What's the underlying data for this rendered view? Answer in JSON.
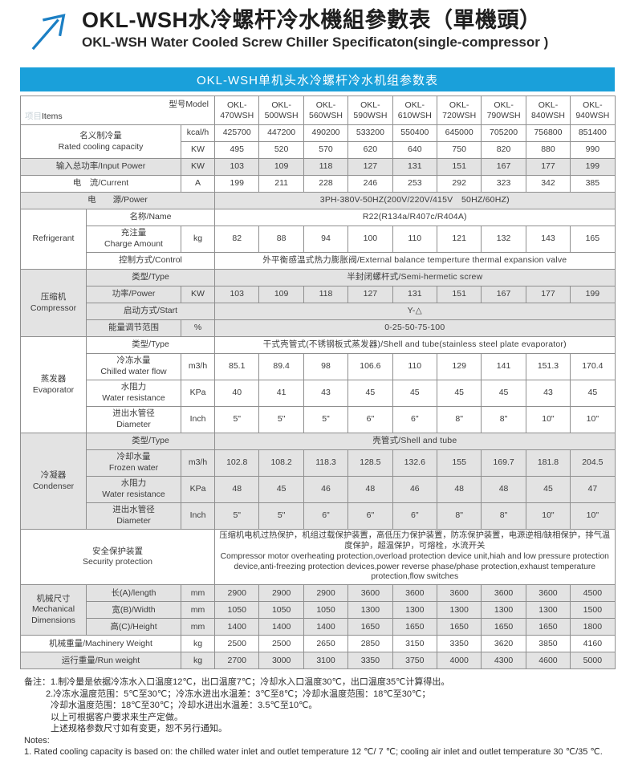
{
  "header": {
    "title_zh": "OKL-WSH水冷螺杆冷水機組參數表（單機頭）",
    "title_en": "OKL-WSH Water Cooled Screw Chiller Specificaton(single-compressor )",
    "arrow_color": "#1b7fc4"
  },
  "banner": {
    "text": "OKL-WSH单机头水冷螺杆冷水机组参数表",
    "bg_color": "#1aa0da"
  },
  "table": {
    "corner": {
      "items_zh": "项目",
      "items_en": "Items",
      "model_label": "型号Model"
    },
    "models": [
      "OKL-470WSH",
      "OKL-500WSH",
      "OKL-560WSH",
      "OKL-590WSH",
      "OKL-610WSH",
      "OKL-720WSH",
      "OKL-790WSH",
      "OKL-840WSH",
      "OKL-940WSH"
    ],
    "rated_capacity": {
      "label_zh": "名义制冷量",
      "label_en": "Rated cooling capacity",
      "unit_kcal": "kcal/h",
      "unit_kw": "KW",
      "kcal_values": [
        "425700",
        "447200",
        "490200",
        "533200",
        "550400",
        "645000",
        "705200",
        "756800",
        "851400"
      ],
      "kw_values": [
        "495",
        "520",
        "570",
        "620",
        "640",
        "750",
        "820",
        "880",
        "990"
      ]
    },
    "input_power": {
      "label": "输入总功率/Input Power",
      "unit": "KW",
      "values": [
        "103",
        "109",
        "118",
        "127",
        "131",
        "151",
        "167",
        "177",
        "199"
      ]
    },
    "current": {
      "label": "电　流/Current",
      "unit": "A",
      "values": [
        "199",
        "211",
        "228",
        "246",
        "253",
        "292",
        "323",
        "342",
        "385"
      ]
    },
    "power_source": {
      "label": "电　　源/Power",
      "value": "3PH-380V-50HZ(200V/220V/415V　50HZ/60HZ)"
    },
    "refrigerant": {
      "section": "Refrigerant",
      "name": {
        "label": "名称/Name",
        "value": "R22(R134a/R407c/R404A)"
      },
      "charge": {
        "label_zh": "充注量",
        "label_en": "Charge Amount",
        "unit": "kg",
        "values": [
          "82",
          "88",
          "94",
          "100",
          "110",
          "121",
          "132",
          "143",
          "165"
        ]
      },
      "control": {
        "label": "控制方式/Control",
        "value": "外平衡感温式热力膨胀阀/External balance temperture thermal expansion valve"
      }
    },
    "compressor": {
      "section_zh": "压缩机",
      "section_en": "Compressor",
      "type": {
        "label": "类型/Type",
        "value": "半封闭螺杆式/Semi-hermetic screw"
      },
      "power": {
        "label": "功率/Power",
        "unit": "KW",
        "values": [
          "103",
          "109",
          "118",
          "127",
          "131",
          "151",
          "167",
          "177",
          "199"
        ]
      },
      "start": {
        "label": "启动方式/Start",
        "value": "Y-△"
      },
      "energy": {
        "label": "能量调节范围",
        "unit": "%",
        "value": "0-25-50-75-100"
      }
    },
    "evaporator": {
      "section_zh": "蒸发器",
      "section_en": "Evaporator",
      "type": {
        "label": "类型/Type",
        "value": "干式壳管式(不锈钢板式蒸发器)/Shell and tube(stainless steel plate evaporator)"
      },
      "chilled_flow": {
        "label_zh": "冷冻水量",
        "label_en": "Chilled water flow",
        "unit": "m3/h",
        "values": [
          "85.1",
          "89.4",
          "98",
          "106.6",
          "110",
          "129",
          "141",
          "151.3",
          "170.4"
        ]
      },
      "water_resistance": {
        "label_zh": "水阻力",
        "label_en": "Water resistance",
        "unit": "KPa",
        "values": [
          "40",
          "41",
          "43",
          "45",
          "45",
          "45",
          "45",
          "43",
          "45"
        ]
      },
      "diameter": {
        "label_zh": "进出水管径",
        "label_en": "Diameter",
        "unit": "Inch",
        "values": [
          "5\"",
          "5\"",
          "5\"",
          "6\"",
          "6\"",
          "8\"",
          "8\"",
          "10\"",
          "10\""
        ]
      }
    },
    "condenser": {
      "section_zh": "冷凝器",
      "section_en": "Condenser",
      "type": {
        "label": "类型/Type",
        "value": "壳管式/Shell and tube"
      },
      "frozen_water": {
        "label_zh": "冷却水量",
        "label_en": "Frozen water",
        "unit": "m3/h",
        "values": [
          "102.8",
          "108.2",
          "118.3",
          "128.5",
          "132.6",
          "155",
          "169.7",
          "181.8",
          "204.5"
        ]
      },
      "water_resistance": {
        "label_zh": "水阻力",
        "label_en": "Water resistance",
        "unit": "KPa",
        "values": [
          "48",
          "45",
          "46",
          "48",
          "46",
          "48",
          "48",
          "45",
          "47"
        ]
      },
      "diameter": {
        "label_zh": "进出水管径",
        "label_en": "Diameter",
        "unit": "Inch",
        "values": [
          "5\"",
          "5\"",
          "6\"",
          "6\"",
          "6\"",
          "8\"",
          "8\"",
          "10\"",
          "10\""
        ]
      }
    },
    "security": {
      "label_zh": "安全保护装置",
      "label_en": "Security protection",
      "text_zh": "压缩机电机过热保护，机组过载保护装置，高低压力保护装置，防冻保护装置，电源逆相/缺相保护，排气温度保护，超温保护，可熔栓，水流开关",
      "text_en": "Compressor motor overheating protection,overload protection device unit,hiah and low pressure protection device,anti-freezing protection devices,power reverse phase/phase protection,exhaust temperature protection,flow switches"
    },
    "dimensions": {
      "section_zh": "机械尺寸",
      "section_en": "Mechanical Dimensions",
      "length": {
        "label": "长(A)/length",
        "unit": "mm",
        "values": [
          "2900",
          "2900",
          "2900",
          "3600",
          "3600",
          "3600",
          "3600",
          "3600",
          "4500"
        ]
      },
      "width": {
        "label": "宽(B)/Width",
        "unit": "mm",
        "values": [
          "1050",
          "1050",
          "1050",
          "1300",
          "1300",
          "1300",
          "1300",
          "1300",
          "1500"
        ]
      },
      "height": {
        "label": "高(C)/Height",
        "unit": "mm",
        "values": [
          "1400",
          "1400",
          "1400",
          "1650",
          "1650",
          "1650",
          "1650",
          "1650",
          "1800"
        ]
      }
    },
    "machinery_weight": {
      "label": "机械重量/Machinery Weight",
      "unit": "kg",
      "values": [
        "2500",
        "2500",
        "2650",
        "2850",
        "3150",
        "3350",
        "3620",
        "3850",
        "4160"
      ]
    },
    "run_weight": {
      "label": "运行重量/Run weight",
      "unit": "kg",
      "values": [
        "2700",
        "3000",
        "3100",
        "3350",
        "3750",
        "4000",
        "4300",
        "4600",
        "5000"
      ]
    }
  },
  "notes": {
    "lines": [
      {
        "text": "备注：1.制冷量是依据冷冻水入口温度12℃，出口温度7℃；冷却水入口温度30℃，出口温度35℃计算得出。",
        "indent": 0
      },
      {
        "text": "2.冷冻水温度范围：5℃至30℃；冷冻水进出水温差：3℃至8℃；冷却水温度范围：18℃至30℃；",
        "indent": 1
      },
      {
        "text": "冷却水温度范围：18℃至30℃；冷却水进出水温差：3.5℃至10℃。",
        "indent": 2
      },
      {
        "text": "以上可根据客户要求来生产定做。",
        "indent": 2
      },
      {
        "text": "上述规格参数尺寸如有变更，恕不另行通知。",
        "indent": 2
      },
      {
        "text": "Notes:",
        "indent": 0
      },
      {
        "text": "1. Rated cooling capacity is based on: the chilled water inlet and outlet temperature 12 ℃/ 7 ℃; cooling air inlet and outlet temperature 30 ℃/35 ℃.",
        "indent": 0
      }
    ]
  }
}
